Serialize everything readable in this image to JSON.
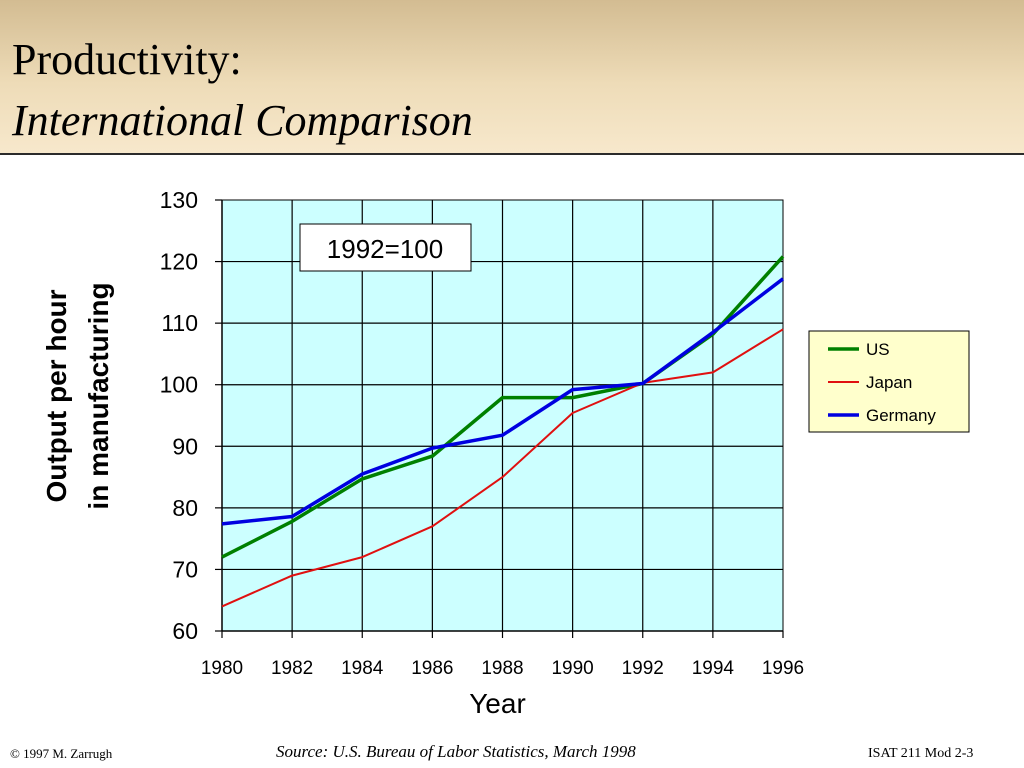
{
  "slide": {
    "title": "Productivity:",
    "subtitle": "International Comparison",
    "footer_left": "© 1997 M. Zarrugh",
    "footer_source": "Source: U.S. Bureau of Labor Statistics, March 1998",
    "footer_right": "ISAT 211 Mod 2-3"
  },
  "chart_data": {
    "type": "line",
    "title": "",
    "xlabel": "Year",
    "ylabel": [
      "Output per hour",
      "in manufacturing"
    ],
    "annotation": "1992=100",
    "x": [
      1980,
      1982,
      1984,
      1986,
      1988,
      1990,
      1992,
      1994,
      1996
    ],
    "xlim": [
      1980,
      1996
    ],
    "ylim": [
      60,
      130
    ],
    "yticks": [
      60,
      70,
      80,
      90,
      100,
      110,
      120,
      130
    ],
    "grid": true,
    "legend_position": "right",
    "plot_background": "#ccffff",
    "series": [
      {
        "name": "US",
        "color": "#008000",
        "values": [
          72,
          77.8,
          84.7,
          88.4,
          97.9,
          97.9,
          100.2,
          108.2,
          120.8
        ]
      },
      {
        "name": "Japan",
        "color": "#e01010",
        "values": [
          64,
          69,
          72,
          77,
          85,
          95.4,
          100.3,
          102,
          109
        ]
      },
      {
        "name": "Germany",
        "color": "#0000e0",
        "values": [
          77.4,
          78.6,
          85.5,
          89.7,
          91.8,
          99.2,
          100.2,
          108.5,
          117.2
        ]
      }
    ]
  }
}
